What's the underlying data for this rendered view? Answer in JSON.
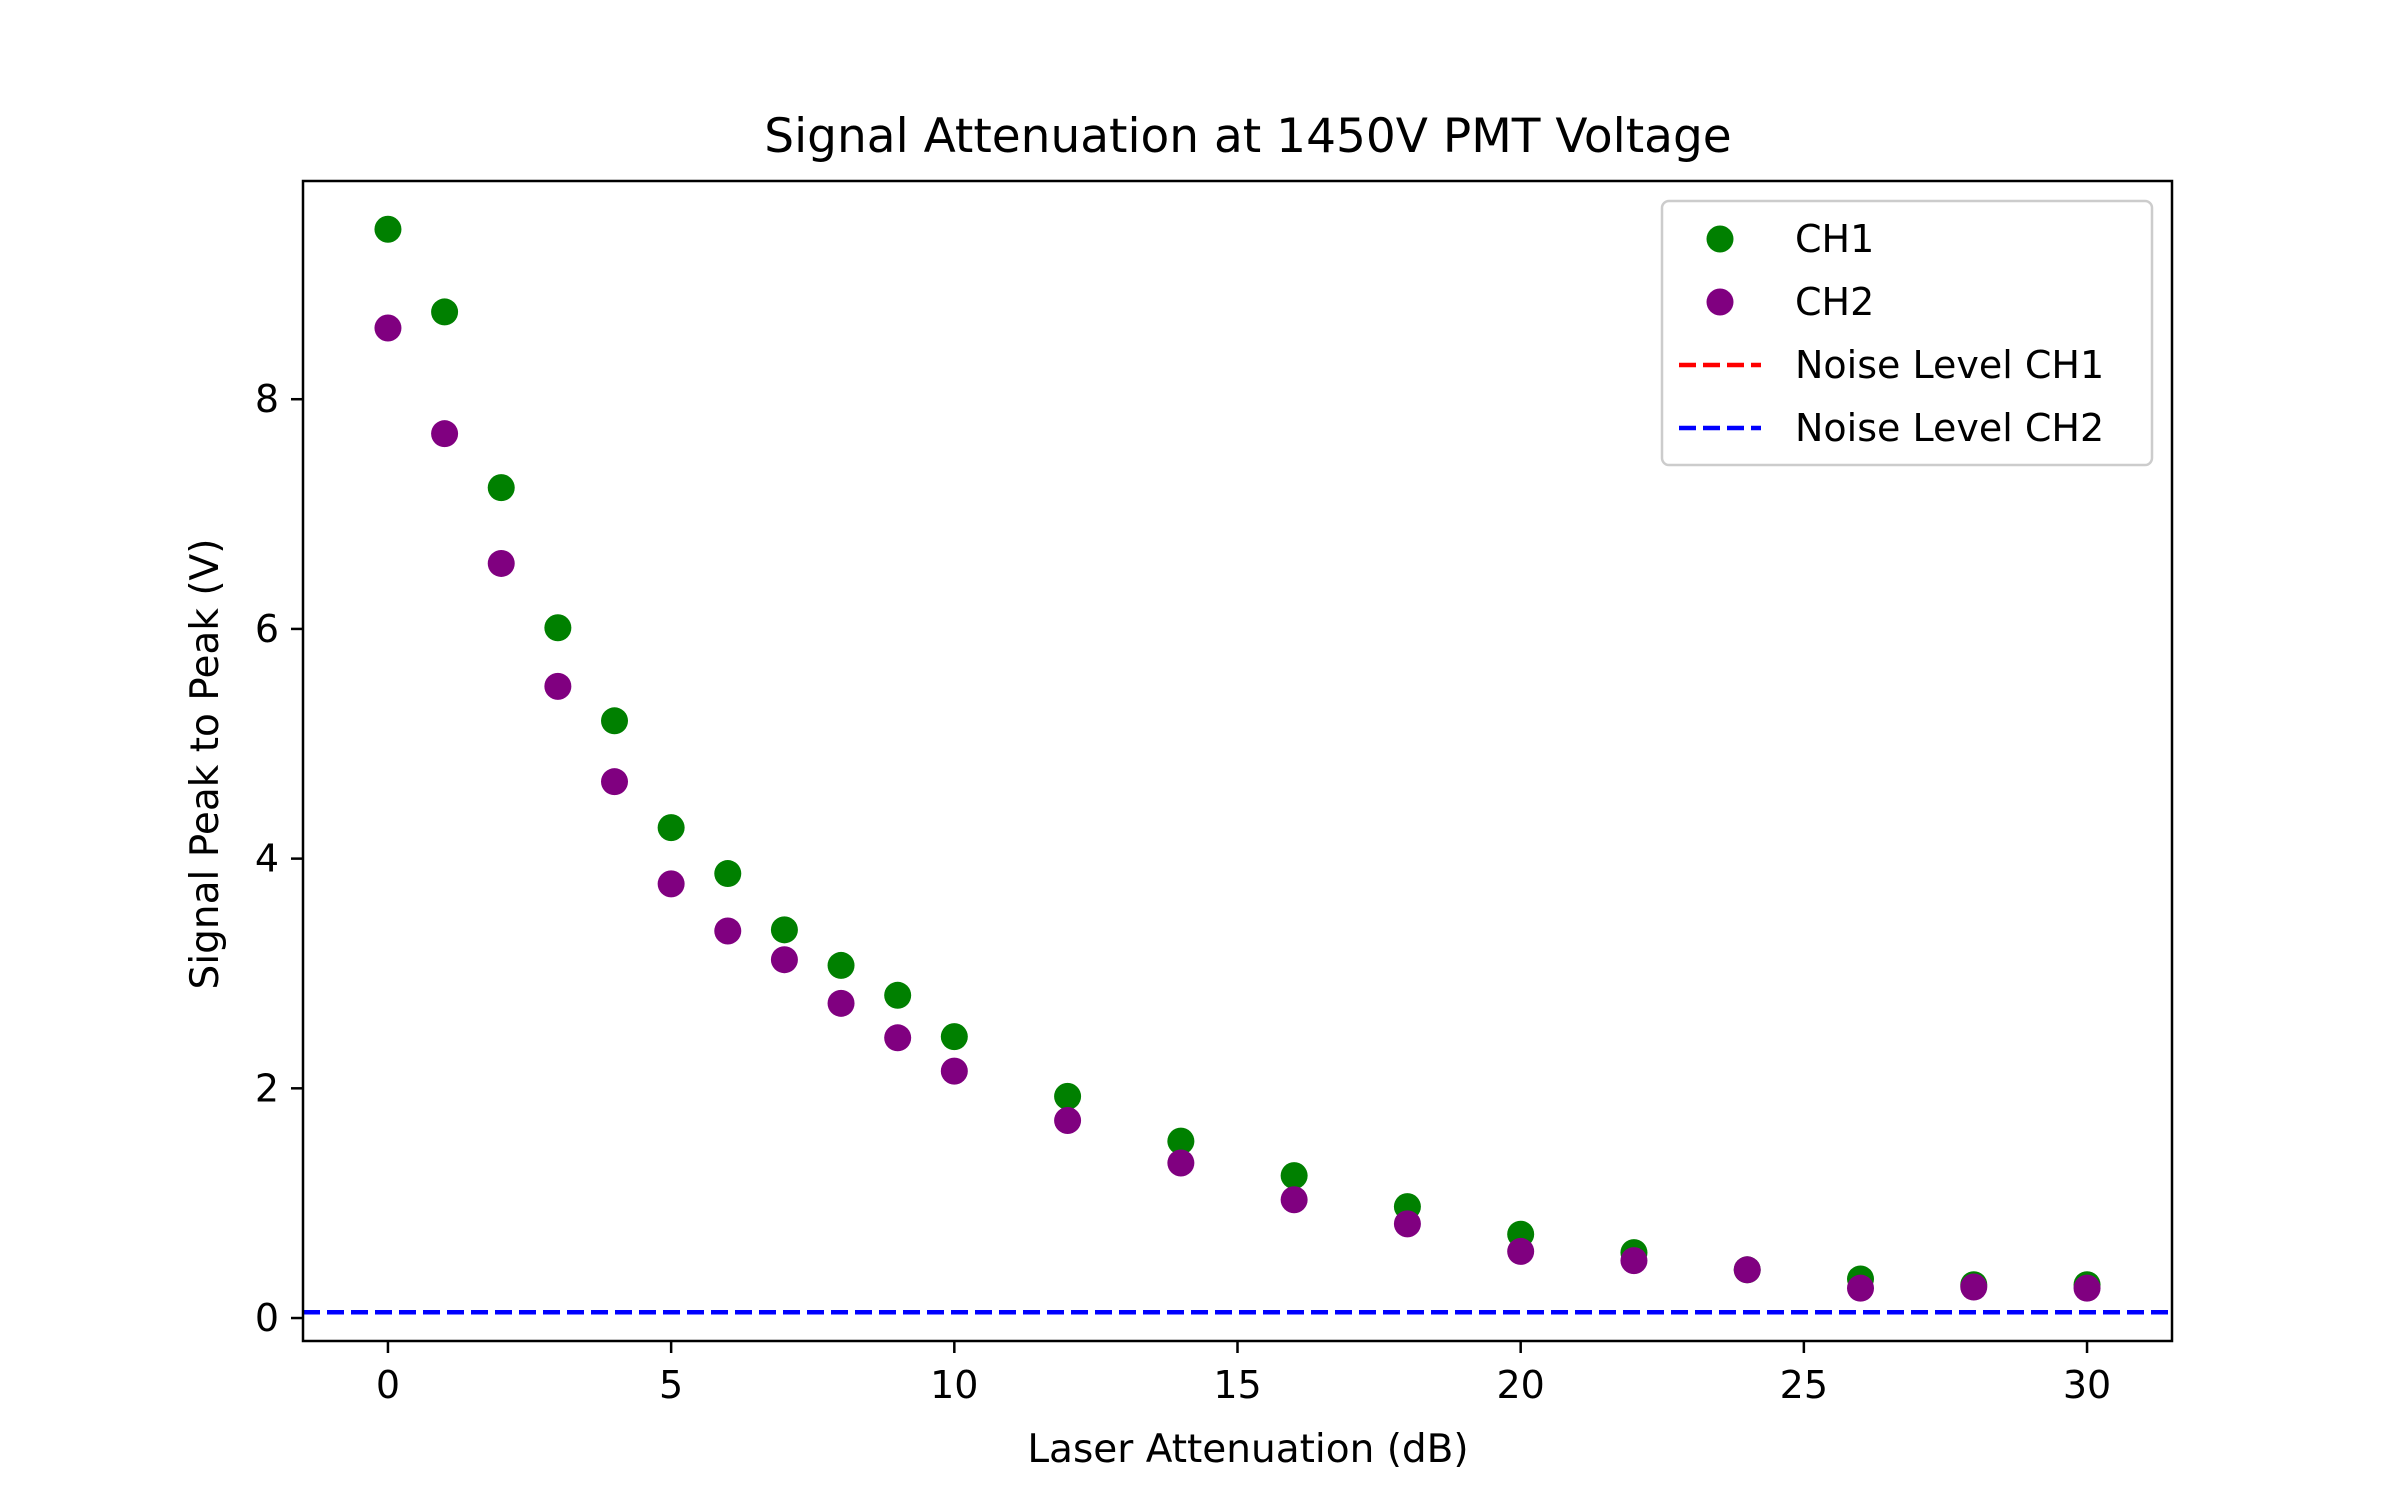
{
  "chart_data": {
    "type": "scatter",
    "title": "Signal Attenuation at 1450V PMT Voltage",
    "xlabel": "Laser Attenuation (dB)",
    "ylabel": "Signal Peak to Peak (V)",
    "xlim": [
      -1.5,
      31.5
    ],
    "ylim": [
      -0.2,
      9.9
    ],
    "xticks": [
      0,
      5,
      10,
      15,
      20,
      25,
      30
    ],
    "yticks": [
      0,
      2,
      4,
      6,
      8
    ],
    "grid": false,
    "legend_position": "top-right",
    "series": [
      {
        "name": "CH1",
        "kind": "scatter",
        "color": "#008000",
        "x": [
          0,
          1,
          2,
          3,
          4,
          5,
          6,
          7,
          8,
          9,
          10,
          12,
          14,
          16,
          18,
          20,
          22,
          24,
          26,
          28,
          30
        ],
        "y": [
          9.48,
          8.76,
          7.23,
          6.01,
          5.2,
          4.27,
          3.87,
          3.38,
          3.07,
          2.81,
          2.45,
          1.93,
          1.54,
          1.24,
          0.97,
          0.73,
          0.57,
          0.42,
          0.34,
          0.29,
          0.29
        ]
      },
      {
        "name": "CH2",
        "kind": "scatter",
        "color": "#800080",
        "x": [
          0,
          1,
          2,
          3,
          4,
          5,
          6,
          7,
          8,
          9,
          10,
          12,
          14,
          16,
          18,
          20,
          22,
          24,
          26,
          28,
          30
        ],
        "y": [
          8.62,
          7.7,
          6.57,
          5.5,
          4.67,
          3.78,
          3.37,
          3.12,
          2.74,
          2.44,
          2.15,
          1.72,
          1.35,
          1.03,
          0.82,
          0.58,
          0.5,
          0.42,
          0.26,
          0.27,
          0.26
        ]
      },
      {
        "name": "Noise Level CH1",
        "kind": "hline",
        "color": "#ff0000",
        "dash": "dashed",
        "y": 0.05
      },
      {
        "name": "Noise Level CH2",
        "kind": "hline",
        "color": "#0000ff",
        "dash": "dashed",
        "y": 0.05
      }
    ]
  }
}
